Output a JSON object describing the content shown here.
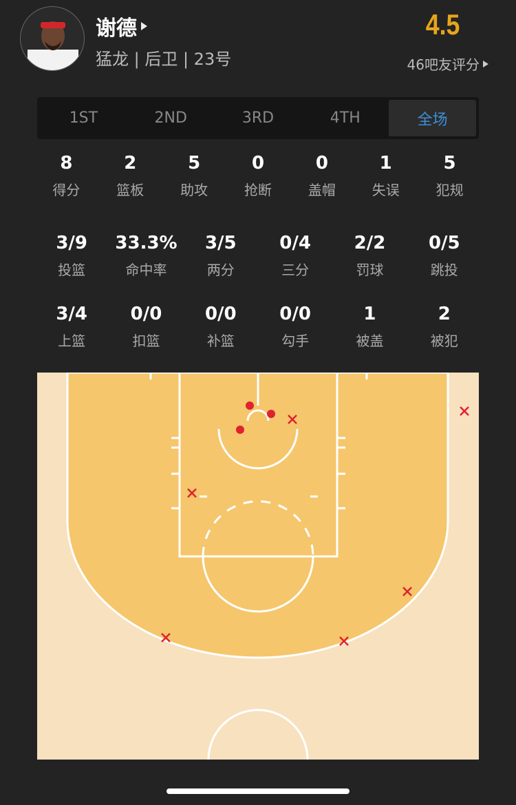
{
  "player": {
    "name": "谢德",
    "info": "猛龙 | 后卫 | 23号",
    "rating": "4.5",
    "rating_count_label": "46吧友评分"
  },
  "tabs": [
    {
      "label": "1ST"
    },
    {
      "label": "2ND"
    },
    {
      "label": "3RD"
    },
    {
      "label": "4TH"
    },
    {
      "label": "全场",
      "active": true
    }
  ],
  "stats_row1": [
    {
      "v": "8",
      "l": "得分"
    },
    {
      "v": "2",
      "l": "篮板"
    },
    {
      "v": "5",
      "l": "助攻"
    },
    {
      "v": "0",
      "l": "抢断"
    },
    {
      "v": "0",
      "l": "盖帽"
    },
    {
      "v": "1",
      "l": "失误"
    },
    {
      "v": "5",
      "l": "犯规"
    }
  ],
  "stats_row2": [
    {
      "v": "3/9",
      "l": "投篮"
    },
    {
      "v": "33.3%",
      "l": "命中率"
    },
    {
      "v": "3/5",
      "l": "两分"
    },
    {
      "v": "0/4",
      "l": "三分"
    },
    {
      "v": "2/2",
      "l": "罚球"
    },
    {
      "v": "0/5",
      "l": "跳投"
    }
  ],
  "stats_row3": [
    {
      "v": "3/4",
      "l": "上篮"
    },
    {
      "v": "0/0",
      "l": "扣篮"
    },
    {
      "v": "0/0",
      "l": "补篮"
    },
    {
      "v": "0/0",
      "l": "勾手"
    },
    {
      "v": "1",
      "l": "被盖"
    },
    {
      "v": "2",
      "l": "被犯"
    }
  ],
  "shot_chart": {
    "made": 3,
    "missed": 6,
    "made_color": "#e0212e",
    "missed_color": "#e0212e"
  },
  "colors": {
    "rating": "#e6a51c",
    "active_tab": "#3d8fd8",
    "court_inner": "#f5c66c",
    "court_outer": "#f8e1bf"
  }
}
